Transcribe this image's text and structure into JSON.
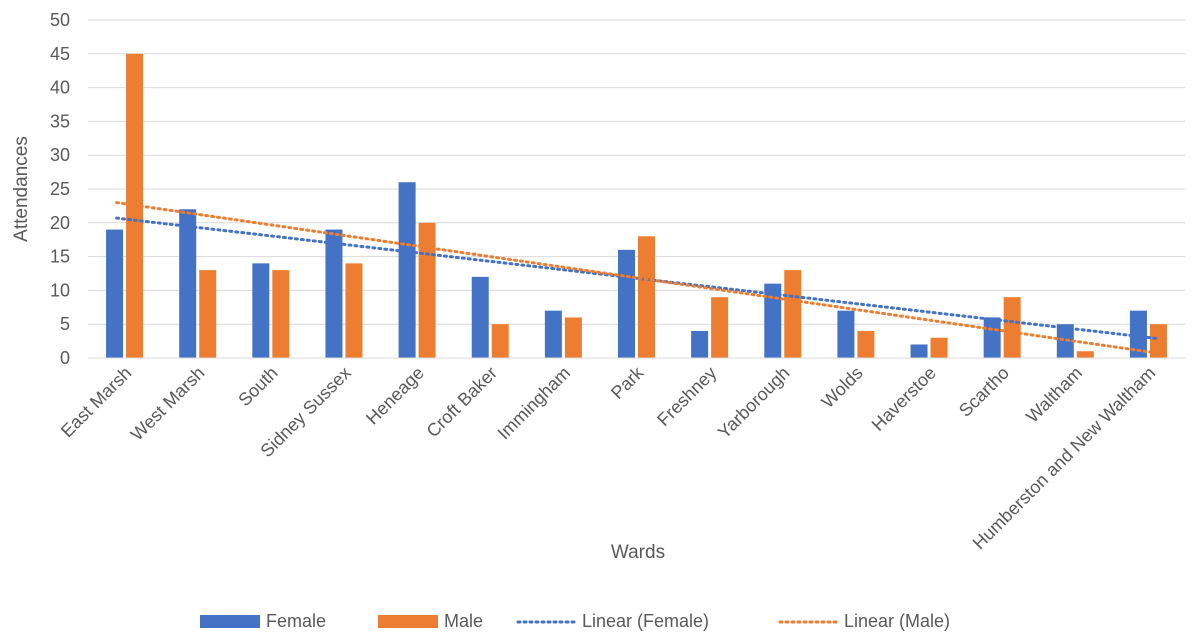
{
  "chart_data": {
    "type": "bar",
    "title": "",
    "xlabel": "Wards",
    "ylabel": "Attendances",
    "ylim": [
      0,
      50
    ],
    "yticks": [
      0,
      5,
      10,
      15,
      20,
      25,
      30,
      35,
      40,
      45,
      50
    ],
    "grid": "horizontal",
    "legend": "bottom",
    "categories": [
      "East Marsh",
      "West Marsh",
      "South",
      "Sidney Sussex",
      "Heneage",
      "Croft Baker",
      "Immingham",
      "Park",
      "Freshney",
      "Yarborough",
      "Wolds",
      "Haverstoe",
      "Scartho",
      "Waltham",
      "Humberston and New Waltham"
    ],
    "series": [
      {
        "name": "Female",
        "color": "#4472C4",
        "values": [
          19,
          22,
          14,
          19,
          26,
          12,
          7,
          16,
          4,
          11,
          7,
          2,
          6,
          5,
          7
        ]
      },
      {
        "name": "Male",
        "color": "#ED7D31",
        "values": [
          45,
          13,
          13,
          14,
          20,
          5,
          6,
          18,
          9,
          13,
          4,
          3,
          9,
          1,
          5
        ]
      }
    ],
    "trendlines": [
      {
        "name": "Linear (Female)",
        "color": "#4472C4",
        "of": "Female",
        "kind": "linear"
      },
      {
        "name": "Linear (Male)",
        "color": "#ED7D31",
        "of": "Male",
        "kind": "linear"
      }
    ]
  }
}
